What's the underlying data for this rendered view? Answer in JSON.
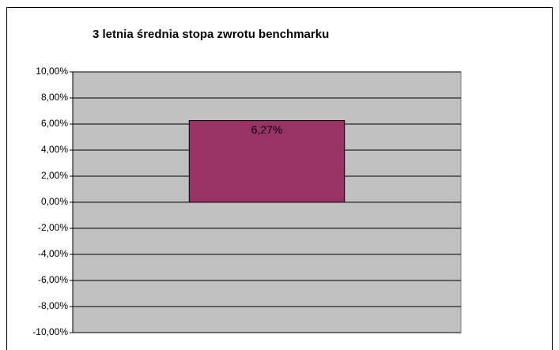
{
  "chart_data": {
    "type": "bar",
    "title": "3 letnia średnia stopa zwrotu benchmarku",
    "categories": [
      null
    ],
    "values": [
      6.27
    ],
    "value_labels": [
      "6,27%"
    ],
    "color": "#993366",
    "ylim": [
      -10,
      10
    ],
    "yticks": [
      {
        "value": -10,
        "label": "-10,00%"
      },
      {
        "value": -8,
        "label": "-8,00%"
      },
      {
        "value": -6,
        "label": "-6,00%"
      },
      {
        "value": -4,
        "label": "-4,00%"
      },
      {
        "value": -2,
        "label": "-2,00%"
      },
      {
        "value": 0,
        "label": "0,00%"
      },
      {
        "value": 2,
        "label": "2,00%"
      },
      {
        "value": 4,
        "label": "4,00%"
      },
      {
        "value": 6,
        "label": "6,00%"
      },
      {
        "value": 8,
        "label": "8,00%"
      },
      {
        "value": 10,
        "label": "10,00%"
      }
    ],
    "grid": true
  }
}
